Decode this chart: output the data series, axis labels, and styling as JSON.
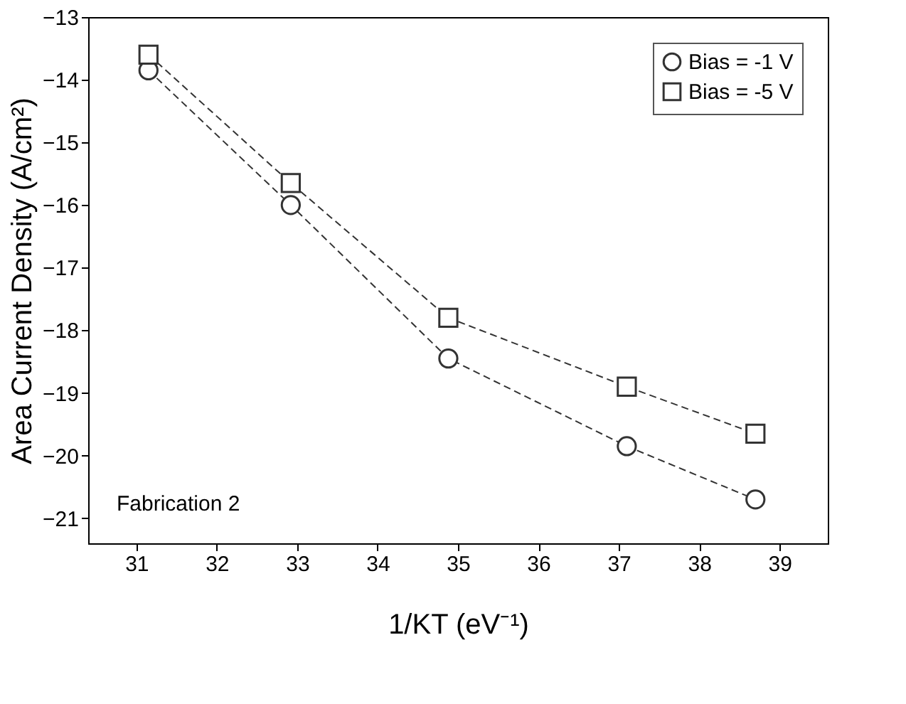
{
  "chart_data": {
    "type": "line",
    "xlabel": "1/KT (eV⁻¹)",
    "ylabel": "Area Current Density (A/cm²)",
    "x": [
      31.15,
      32.92,
      34.88,
      37.1,
      38.7
    ],
    "series": [
      {
        "name": "Bias = -1 V",
        "color": "#333333",
        "marker": "circle",
        "values": [
          -13.85,
          -16.0,
          -18.45,
          -19.85,
          -20.7
        ]
      },
      {
        "name": "Bias = -5 V",
        "color": "#333333",
        "marker": "square",
        "values": [
          -13.6,
          -15.65,
          -17.8,
          -18.9,
          -19.65
        ]
      }
    ],
    "xlim": [
      30.4,
      39.6
    ],
    "xticks": [
      31,
      32,
      33,
      34,
      35,
      36,
      37,
      38,
      39
    ],
    "ylim": [
      -21.4,
      -13
    ],
    "yticks": [
      -13,
      -14,
      -15,
      -16,
      -17,
      -18,
      -19,
      -20,
      -21
    ],
    "line_style": "dashed",
    "legend": "top right",
    "grid": false,
    "annotations": [
      "Fabrication 2"
    ]
  }
}
